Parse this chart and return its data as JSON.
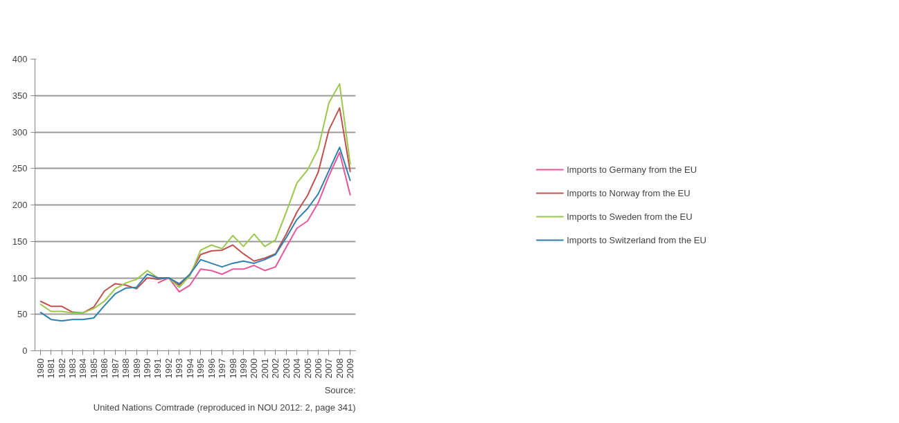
{
  "chart_data": {
    "type": "line",
    "categories": [
      "1980",
      "1981",
      "1982",
      "1983",
      "1984",
      "1985",
      "1986",
      "1987",
      "1988",
      "1989",
      "1990",
      "1991",
      "1992",
      "1993",
      "1994",
      "1995",
      "1996",
      "1997",
      "1998",
      "1999",
      "2000",
      "2001",
      "2002",
      "2003",
      "2004",
      "2005",
      "2006",
      "2007",
      "2008",
      "2009"
    ],
    "series": [
      {
        "name": "Imports to Germany from the EU",
        "color": "#e8559a",
        "values": [
          null,
          null,
          null,
          null,
          null,
          null,
          null,
          null,
          null,
          null,
          null,
          93,
          100,
          81,
          90,
          112,
          110,
          105,
          112,
          112,
          117,
          110,
          115,
          142,
          168,
          178,
          203,
          240,
          272,
          213
        ]
      },
      {
        "name": "Imports to Norway from the EU",
        "color": "#c0504d",
        "values": [
          68,
          61,
          61,
          53,
          52,
          60,
          82,
          92,
          90,
          85,
          100,
          98,
          100,
          90,
          105,
          132,
          137,
          138,
          145,
          133,
          123,
          127,
          133,
          160,
          190,
          213,
          245,
          303,
          333,
          245
        ]
      },
      {
        "name": "Imports to Sweden from the EU",
        "color": "#9bc84a",
        "values": [
          64,
          54,
          54,
          52,
          52,
          58,
          68,
          85,
          93,
          98,
          110,
          100,
          100,
          87,
          103,
          138,
          145,
          140,
          158,
          143,
          160,
          143,
          152,
          190,
          230,
          248,
          277,
          340,
          366,
          255
        ]
      },
      {
        "name": "Imports to Switzerland from the EU",
        "color": "#2e7fb0",
        "values": [
          53,
          43,
          41,
          43,
          43,
          45,
          62,
          78,
          86,
          87,
          105,
          100,
          100,
          92,
          105,
          125,
          120,
          115,
          120,
          123,
          120,
          125,
          132,
          155,
          180,
          195,
          215,
          247,
          279,
          233
        ]
      }
    ],
    "ylim": [
      0,
      400
    ],
    "yticks": [
      0,
      50,
      100,
      150,
      200,
      250,
      300,
      350,
      400
    ],
    "grid": "y",
    "legend": "right",
    "marker": "none",
    "line_style": "solid",
    "annotations": [
      "Source:",
      "United Nations Comtrade (reproduced in NOU 2012: 2, page 341)"
    ]
  }
}
